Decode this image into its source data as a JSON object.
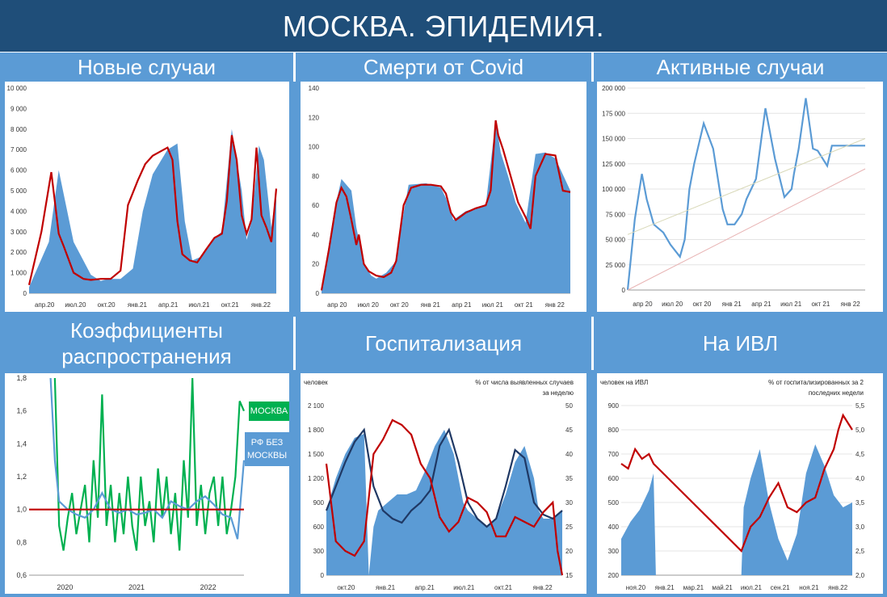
{
  "header": {
    "title": "МОСКВА. ЭПИДЕМИЯ."
  },
  "panels": [
    {
      "title": "Новые случаи"
    },
    {
      "title": "Смерти от Covid"
    },
    {
      "title": "Активные случаи"
    },
    {
      "title": "Коэффициенты распространения"
    },
    {
      "title": "Госпитализация"
    },
    {
      "title": "На ИВЛ"
    }
  ],
  "chart_data": [
    {
      "type": "area",
      "title": "Новые случаи",
      "ylim": [
        0,
        10000
      ],
      "y_ticks": [
        "0",
        "1 000",
        "2 000",
        "3 000",
        "4 000",
        "5 000",
        "6 000",
        "7 000",
        "8 000",
        "9 000",
        "10 000"
      ],
      "x_ticks": [
        "апр.20",
        "июл.20",
        "окт.20",
        "янв.21",
        "апр.21",
        "июл.21",
        "окт.21",
        "янв.22"
      ],
      "series": [
        {
          "kind": "area",
          "color": "#5b9bd5",
          "x": [
            0,
            0.08,
            0.12,
            0.18,
            0.25,
            0.29,
            0.32,
            0.37,
            0.42,
            0.46,
            0.5,
            0.56,
            0.6,
            0.63,
            0.66,
            0.7,
            0.74,
            0.78,
            0.82,
            0.86,
            0.88,
            0.9,
            0.93,
            0.95,
            0.98,
            1.0
          ],
          "values": [
            300,
            2500,
            6000,
            2500,
            900,
            600,
            700,
            700,
            1200,
            4000,
            5800,
            7000,
            7300,
            3500,
            1600,
            1800,
            2600,
            3000,
            8000,
            5000,
            2600,
            3500,
            7200,
            6500,
            3200,
            5000
          ]
        },
        {
          "kind": "line",
          "color": "#c00000",
          "x": [
            0,
            0.05,
            0.09,
            0.12,
            0.14,
            0.18,
            0.22,
            0.25,
            0.29,
            0.33,
            0.37,
            0.4,
            0.44,
            0.47,
            0.5,
            0.53,
            0.56,
            0.58,
            0.6,
            0.62,
            0.65,
            0.68,
            0.72,
            0.75,
            0.78,
            0.8,
            0.82,
            0.84,
            0.86,
            0.88,
            0.9,
            0.92,
            0.94,
            0.96,
            0.98,
            1.0
          ],
          "values": [
            400,
            3000,
            5900,
            2900,
            2300,
            1000,
            700,
            650,
            700,
            700,
            1100,
            4300,
            5500,
            6300,
            6700,
            6900,
            7100,
            6500,
            3500,
            1900,
            1600,
            1500,
            2200,
            2700,
            2900,
            4500,
            7700,
            6500,
            3800,
            2900,
            3600,
            7100,
            3800,
            3200,
            2500,
            5100
          ]
        }
      ]
    },
    {
      "type": "area",
      "title": "Смерти от Covid",
      "ylim": [
        0,
        140
      ],
      "y_ticks": [
        "0",
        "20",
        "40",
        "60",
        "80",
        "100",
        "120",
        "140"
      ],
      "x_ticks": [
        "апр 20",
        "июл 20",
        "окт 20",
        "янв 21",
        "апр 21",
        "июл 21",
        "окт 21",
        "янв 22"
      ],
      "series": [
        {
          "kind": "area",
          "color": "#5b9bd5",
          "x": [
            0,
            0.05,
            0.08,
            0.12,
            0.14,
            0.17,
            0.2,
            0.22,
            0.26,
            0.3,
            0.33,
            0.35,
            0.42,
            0.48,
            0.5,
            0.53,
            0.58,
            0.66,
            0.7,
            0.72,
            0.75,
            0.78,
            0.82,
            0.86,
            0.9,
            0.94,
            1.0
          ],
          "values": [
            2,
            55,
            78,
            70,
            45,
            20,
            12,
            10,
            14,
            22,
            55,
            74,
            75,
            72,
            65,
            50,
            56,
            60,
            118,
            96,
            80,
            62,
            48,
            95,
            96,
            92,
            70
          ]
        },
        {
          "kind": "line",
          "color": "#c00000",
          "x": [
            0,
            0.03,
            0.06,
            0.08,
            0.1,
            0.12,
            0.14,
            0.15,
            0.17,
            0.19,
            0.22,
            0.25,
            0.28,
            0.3,
            0.33,
            0.36,
            0.4,
            0.44,
            0.48,
            0.5,
            0.52,
            0.54,
            0.58,
            0.62,
            0.66,
            0.68,
            0.7,
            0.71,
            0.73,
            0.76,
            0.79,
            0.82,
            0.84,
            0.86,
            0.9,
            0.94,
            0.97,
            1.0
          ],
          "values": [
            2,
            30,
            62,
            72,
            66,
            50,
            33,
            40,
            20,
            15,
            12,
            11,
            14,
            22,
            60,
            72,
            74,
            74,
            73,
            68,
            55,
            50,
            55,
            58,
            60,
            70,
            118,
            108,
            98,
            80,
            62,
            52,
            44,
            80,
            95,
            94,
            70,
            69
          ]
        }
      ]
    },
    {
      "type": "line",
      "title": "Активные случаи",
      "ylim": [
        0,
        200000
      ],
      "y_ticks": [
        "0",
        "25 000",
        "50 000",
        "75 000",
        "100 000",
        "125 000",
        "150 000",
        "175 000",
        "200 000"
      ],
      "x_ticks": [
        "апр 20",
        "июл 20",
        "окт 20",
        "янв 21",
        "апр 21",
        "июл 21",
        "окт 21",
        "янв 22"
      ],
      "series": [
        {
          "kind": "line",
          "color": "#5b9bd5",
          "x": [
            0,
            0.03,
            0.06,
            0.08,
            0.11,
            0.15,
            0.18,
            0.22,
            0.24,
            0.26,
            0.28,
            0.32,
            0.36,
            0.4,
            0.42,
            0.45,
            0.48,
            0.5,
            0.54,
            0.58,
            0.62,
            0.66,
            0.69,
            0.7,
            0.72,
            0.75,
            0.78,
            0.8,
            0.84,
            0.86,
            0.88,
            0.9,
            0.92,
            0.94,
            0.96,
            0.98,
            1.0
          ],
          "values": [
            0,
            70000,
            115000,
            90000,
            65000,
            57000,
            45000,
            33000,
            50000,
            100000,
            125000,
            165000,
            140000,
            80000,
            65000,
            65000,
            75000,
            90000,
            110000,
            180000,
            130000,
            92000,
            100000,
            115000,
            140000,
            190000,
            140000,
            138000,
            123000,
            143000,
            143000,
            143000,
            143000,
            143000,
            143000,
            143000,
            143000
          ]
        },
        {
          "kind": "line",
          "color": "#e8b4b4",
          "x": [
            0,
            1.0
          ],
          "values": [
            0,
            120000
          ]
        },
        {
          "kind": "line",
          "color": "#d8d8b8",
          "x": [
            0,
            1.0
          ],
          "values": [
            55000,
            150000
          ]
        }
      ]
    },
    {
      "type": "line",
      "title": "Коэффициенты распространения",
      "ylim": [
        0.6,
        1.8
      ],
      "y_ticks": [
        "0,6",
        "0,8",
        "1,0",
        "1,2",
        "1,4",
        "1,6",
        "1,8"
      ],
      "x_ticks": [
        "2020",
        "2021",
        "2022"
      ],
      "legend": [
        "МОСКВА",
        "РФ БЕЗ МОСКВЫ"
      ],
      "series": [
        {
          "name": "МОСКВА",
          "kind": "line",
          "color": "#00b050",
          "x": [
            0.12,
            0.14,
            0.16,
            0.18,
            0.2,
            0.22,
            0.24,
            0.26,
            0.28,
            0.3,
            0.32,
            0.34,
            0.36,
            0.38,
            0.4,
            0.42,
            0.44,
            0.46,
            0.48,
            0.5,
            0.52,
            0.54,
            0.56,
            0.58,
            0.6,
            0.62,
            0.64,
            0.66,
            0.68,
            0.7,
            0.72,
            0.74,
            0.76,
            0.78,
            0.8,
            0.82,
            0.84,
            0.86,
            0.88,
            0.9,
            0.92,
            0.94,
            0.96,
            0.98,
            1.0
          ],
          "values": [
            1.8,
            0.9,
            0.75,
            0.95,
            1.1,
            0.85,
            1.0,
            1.15,
            0.8,
            1.3,
            0.95,
            1.7,
            0.9,
            1.15,
            0.8,
            1.1,
            0.85,
            1.2,
            0.9,
            0.75,
            1.2,
            0.9,
            1.05,
            0.8,
            1.25,
            0.95,
            1.2,
            0.85,
            1.1,
            0.75,
            1.3,
            0.95,
            1.8,
            0.9,
            1.15,
            0.85,
            1.1,
            1.2,
            0.9,
            1.2,
            0.85,
            1.0,
            1.2,
            1.66,
            1.6
          ]
        },
        {
          "name": "РФ БЕЗ МОСКВЫ",
          "kind": "line",
          "color": "#5b9bd5",
          "x": [
            0.1,
            0.12,
            0.14,
            0.18,
            0.22,
            0.26,
            0.3,
            0.34,
            0.38,
            0.42,
            0.46,
            0.5,
            0.54,
            0.58,
            0.62,
            0.66,
            0.7,
            0.74,
            0.78,
            0.82,
            0.86,
            0.9,
            0.94,
            0.97,
            1.0
          ],
          "values": [
            1.8,
            1.3,
            1.05,
            1.0,
            0.97,
            0.95,
            1.0,
            1.1,
            1.0,
            0.98,
            1.0,
            0.97,
            0.98,
            1.0,
            0.95,
            1.05,
            1.02,
            1.0,
            1.05,
            1.08,
            1.03,
            0.97,
            0.95,
            0.82,
            1.3
          ]
        },
        {
          "kind": "line",
          "color": "#c00000",
          "x": [
            0,
            1.0
          ],
          "values": [
            1.0,
            1.0
          ]
        }
      ]
    },
    {
      "type": "area",
      "title": "Госпитализация",
      "ylabel": "человек",
      "y2label": "% от числа выявленных случаев за неделю",
      "ylim": [
        0,
        2100
      ],
      "y2lim": [
        15,
        50
      ],
      "y_ticks": [
        "0",
        "300",
        "600",
        "900",
        "1 200",
        "1 500",
        "1 800",
        "2 100"
      ],
      "y2_ticks": [
        "15",
        "20",
        "25",
        "30",
        "35",
        "40",
        "45",
        "50"
      ],
      "x_ticks": [
        "окт.20",
        "янв.21",
        "апр.21",
        "июл.21",
        "окт.21",
        "янв.22"
      ],
      "series": [
        {
          "kind": "area",
          "color": "#5b9bd5",
          "x": [
            0,
            0.04,
            0.08,
            0.12,
            0.16,
            0.18,
            0.2,
            0.22,
            0.26,
            0.3,
            0.34,
            0.38,
            0.42,
            0.46,
            0.5,
            0.54,
            0.58,
            0.6,
            0.64,
            0.68,
            0.72,
            0.76,
            0.8,
            0.84,
            0.88,
            0.9,
            0.92,
            0.96,
            1.0
          ],
          "values": [
            800,
            1200,
            1500,
            1700,
            1750,
            0,
            600,
            800,
            900,
            1000,
            1000,
            1050,
            1300,
            1600,
            1800,
            1500,
            900,
            800,
            700,
            600,
            700,
            1000,
            1400,
            1600,
            1200,
            800,
            700,
            700,
            800
          ]
        },
        {
          "kind": "line",
          "color": "#1f3864",
          "x": [
            0,
            0.04,
            0.08,
            0.12,
            0.16,
            0.2,
            0.24,
            0.28,
            0.32,
            0.36,
            0.4,
            0.44,
            0.48,
            0.52,
            0.56,
            0.6,
            0.64,
            0.68,
            0.72,
            0.76,
            0.8,
            0.84,
            0.88,
            0.92,
            0.96,
            1.0
          ],
          "values": [
            800,
            1100,
            1400,
            1650,
            1800,
            1100,
            800,
            700,
            650,
            800,
            900,
            1050,
            1600,
            1800,
            1400,
            900,
            700,
            600,
            700,
            1100,
            1550,
            1450,
            900,
            750,
            700,
            800
          ]
        },
        {
          "kind": "line",
          "color": "#c00000",
          "axis": "y2",
          "x": [
            0,
            0.04,
            0.08,
            0.12,
            0.16,
            0.2,
            0.24,
            0.28,
            0.32,
            0.36,
            0.4,
            0.44,
            0.48,
            0.52,
            0.56,
            0.6,
            0.64,
            0.68,
            0.72,
            0.76,
            0.8,
            0.84,
            0.88,
            0.92,
            0.96,
            0.98,
            1.0
          ],
          "values": [
            38,
            22,
            20,
            19,
            22,
            40,
            43,
            47,
            46,
            44,
            38,
            35,
            27,
            24,
            26,
            31,
            30,
            28,
            23,
            23,
            27,
            26,
            25,
            28,
            30,
            20,
            15
          ]
        }
      ]
    },
    {
      "type": "area",
      "title": "На ИВЛ",
      "ylabel": "человек на ИВЛ",
      "y2label": "% от госпитализированных за 2 последних недели",
      "ylim": [
        200,
        900
      ],
      "y2lim": [
        2.0,
        5.5
      ],
      "y_ticks": [
        "200",
        "300",
        "400",
        "500",
        "600",
        "700",
        "800",
        "900"
      ],
      "y2_ticks": [
        "2,0",
        "2,5",
        "3,0",
        "3,5",
        "4,0",
        "4,5",
        "5,0",
        "5,5"
      ],
      "x_ticks": [
        "ноя.20",
        "янв.21",
        "мар.21",
        "май.21",
        "июл.21",
        "сен.21",
        "ноя.21",
        "янв.22"
      ],
      "series": [
        {
          "kind": "area",
          "color": "#5b9bd5",
          "x": [
            0,
            0.04,
            0.08,
            0.12,
            0.14,
            0.15,
            0.52,
            0.53,
            0.56,
            0.6,
            0.64,
            0.68,
            0.72,
            0.76,
            0.8,
            0.84,
            0.88,
            0.92,
            0.96,
            1.0
          ],
          "values": [
            350,
            420,
            470,
            550,
            620,
            200,
            200,
            480,
            600,
            720,
            500,
            350,
            260,
            370,
            620,
            740,
            650,
            530,
            480,
            500
          ]
        },
        {
          "kind": "line",
          "color": "#c00000",
          "axis": "y2",
          "x": [
            0,
            0.03,
            0.06,
            0.09,
            0.12,
            0.14,
            0.52,
            0.56,
            0.6,
            0.64,
            0.68,
            0.72,
            0.76,
            0.8,
            0.84,
            0.88,
            0.92,
            0.94,
            0.96,
            1.0
          ],
          "values": [
            4.3,
            4.2,
            4.6,
            4.4,
            4.5,
            4.3,
            2.5,
            3.0,
            3.2,
            3.6,
            3.9,
            3.4,
            3.3,
            3.5,
            3.6,
            4.2,
            4.6,
            5.0,
            5.3,
            5.0
          ]
        }
      ]
    }
  ]
}
